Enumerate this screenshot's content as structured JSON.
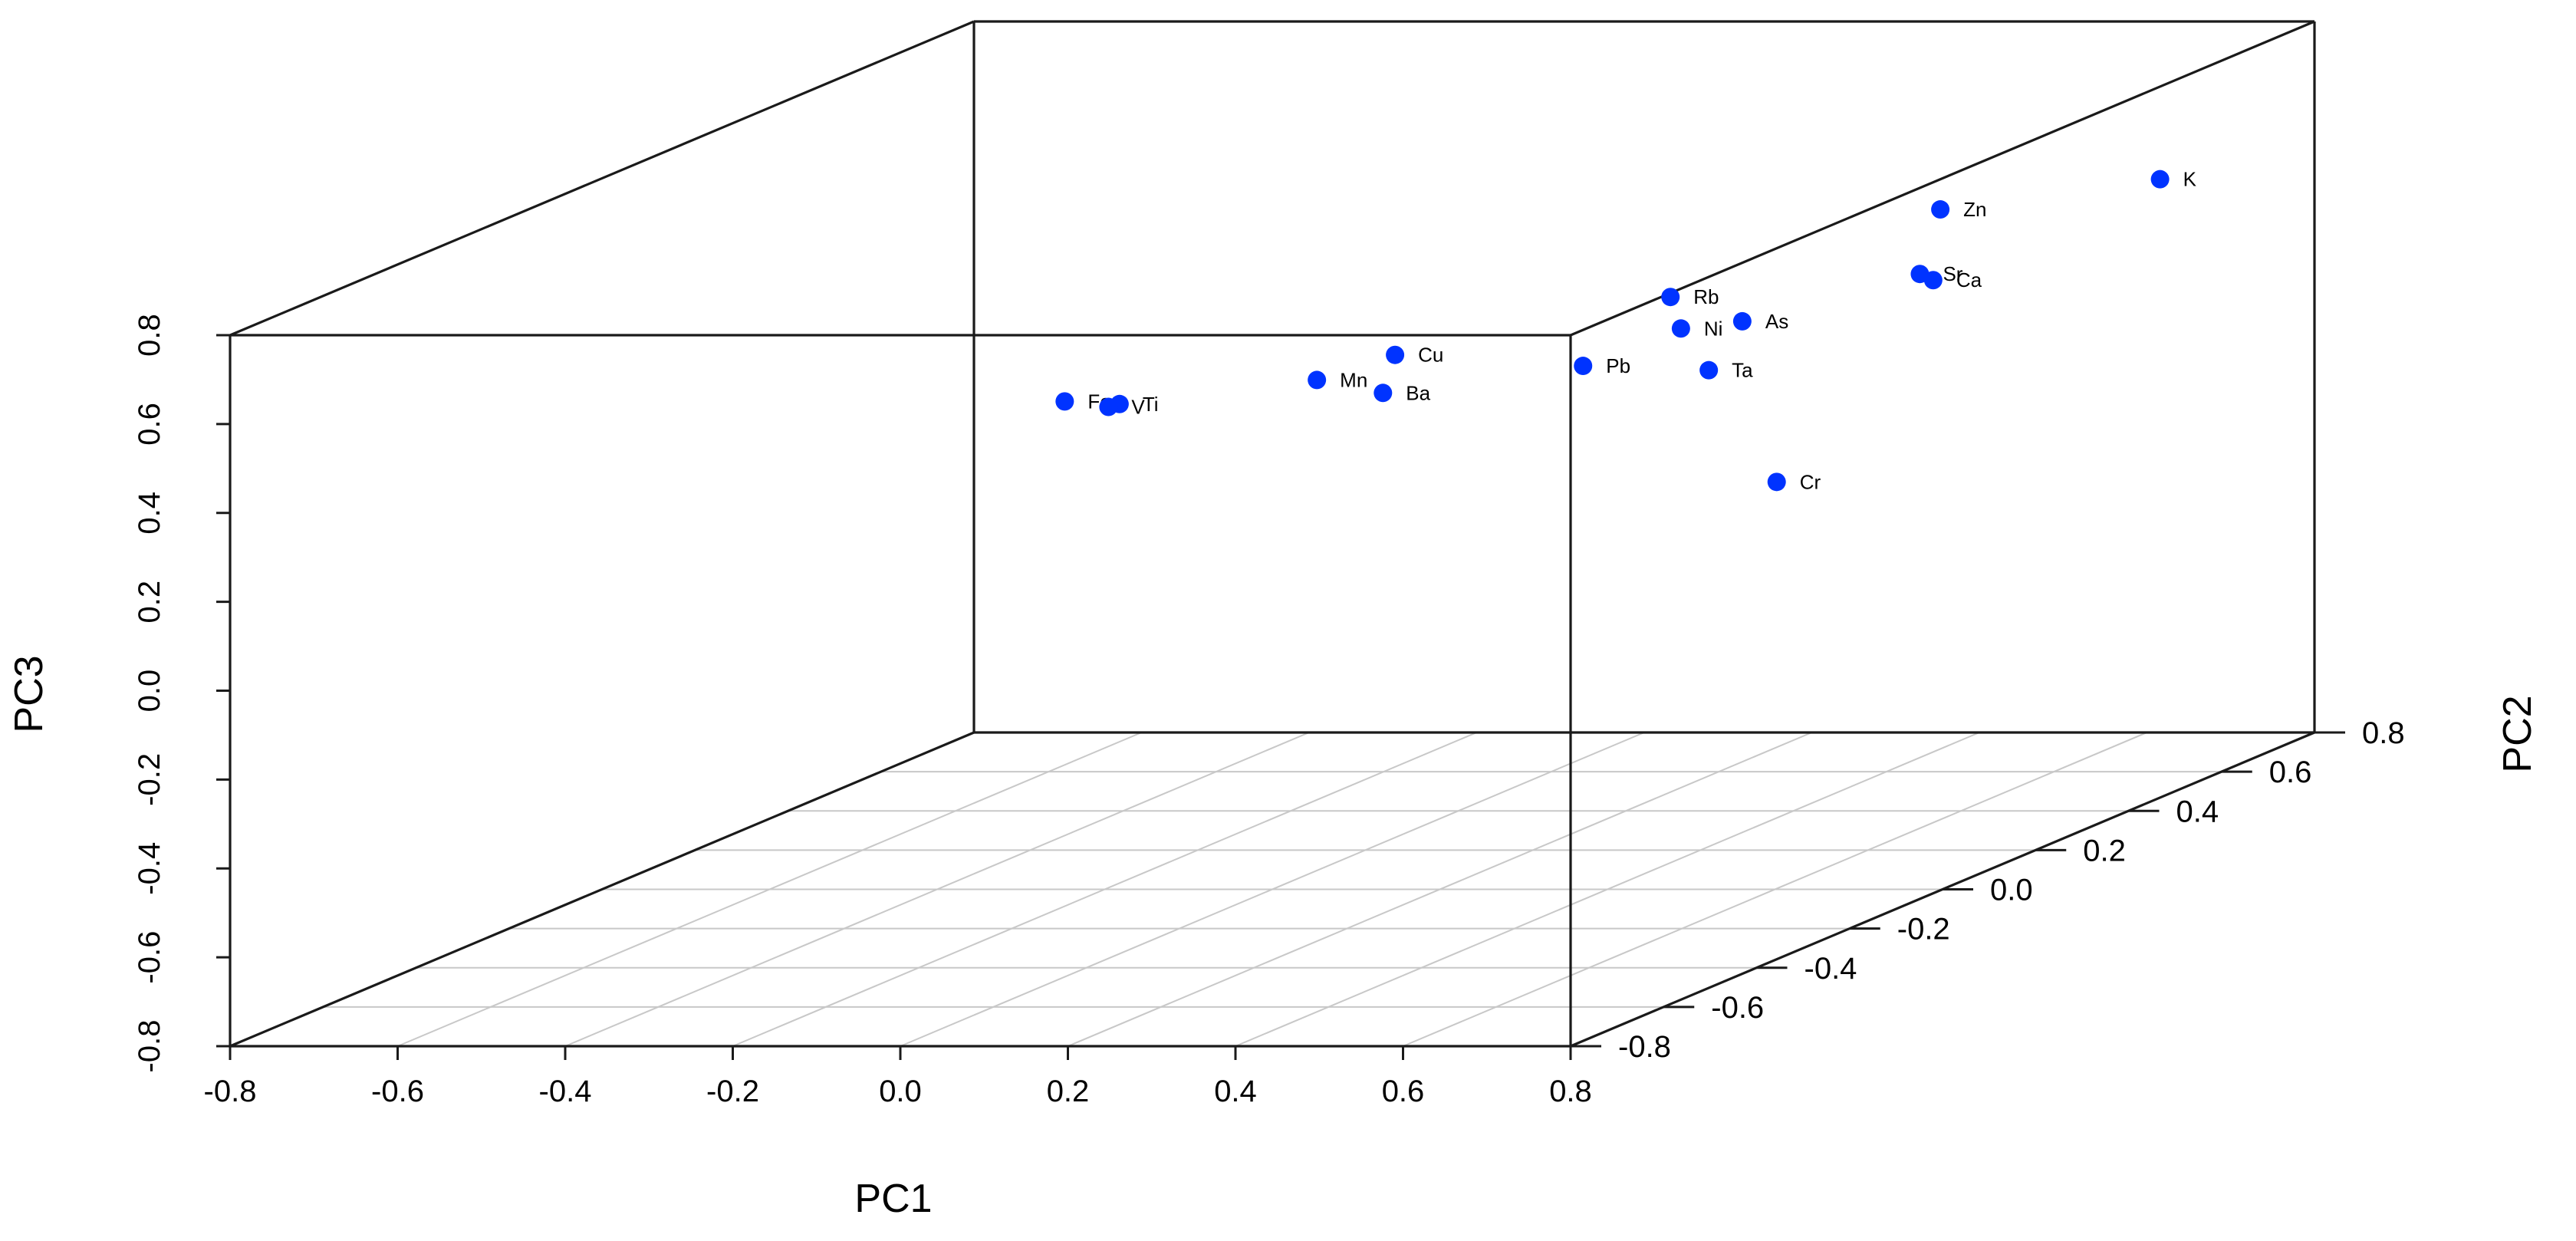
{
  "chart_data": {
    "type": "scatter",
    "title": "",
    "xlabel": "PC1",
    "ylabel": "PC2",
    "zlabel": "PC3",
    "xlim": [
      -0.8,
      0.8
    ],
    "ylim": [
      -0.8,
      0.8
    ],
    "zlim": [
      -0.8,
      0.8
    ],
    "x_ticks": [
      "-0.8",
      "-0.6",
      "-0.4",
      "-0.2",
      "0.0",
      "0.2",
      "0.4",
      "0.6",
      "0.8"
    ],
    "y_ticks": [
      "-0.8",
      "-0.6",
      "-0.4",
      "-0.2",
      "0.0",
      "0.2",
      "0.4",
      "0.6",
      "0.8"
    ],
    "z_ticks": [
      "-0.8",
      "-0.6",
      "-0.4",
      "-0.2",
      "0.0",
      "0.2",
      "0.4",
      "0.6",
      "0.8"
    ],
    "grid": "bottom-plane",
    "point_color": "#0033ff",
    "points": [
      {
        "label": "K",
        "x": 0.71,
        "y": 0.63,
        "z": 0.52
      },
      {
        "label": "Zn",
        "x": 0.42,
        "y": 0.68,
        "z": 0.43
      },
      {
        "label": "Sr",
        "x": 0.44,
        "y": 0.6,
        "z": 0.32
      },
      {
        "label": "Rb",
        "x": 0.22,
        "y": 0.46,
        "z": 0.33
      },
      {
        "label": "Ca",
        "x": 0.75,
        "y": 0.07,
        "z": 0.54
      },
      {
        "label": "As",
        "x": 0.45,
        "y": 0.2,
        "z": 0.39
      },
      {
        "label": "Ni",
        "x": 0.46,
        "y": 0.05,
        "z": 0.44
      },
      {
        "label": "Ta",
        "x": 0.41,
        "y": 0.2,
        "z": 0.28
      },
      {
        "label": "Pb",
        "x": 0.21,
        "y": 0.29,
        "z": 0.25
      },
      {
        "label": "Cu",
        "x": 0.03,
        "y": 0.21,
        "z": 0.31
      },
      {
        "label": "Mn",
        "x": -0.03,
        "y": 0.15,
        "z": 0.28
      },
      {
        "label": "Ba",
        "x": 0.01,
        "y": 0.22,
        "z": 0.22
      },
      {
        "label": "Fe",
        "x": -0.22,
        "y": -0.05,
        "z": 0.32
      },
      {
        "label": "Ti",
        "x": -0.21,
        "y": 0.05,
        "z": 0.27
      },
      {
        "label": "V",
        "x": -0.19,
        "y": -0.01,
        "z": 0.29
      },
      {
        "label": "Cr",
        "x": 0.43,
        "y": 0.31,
        "z": -0.02
      }
    ]
  }
}
